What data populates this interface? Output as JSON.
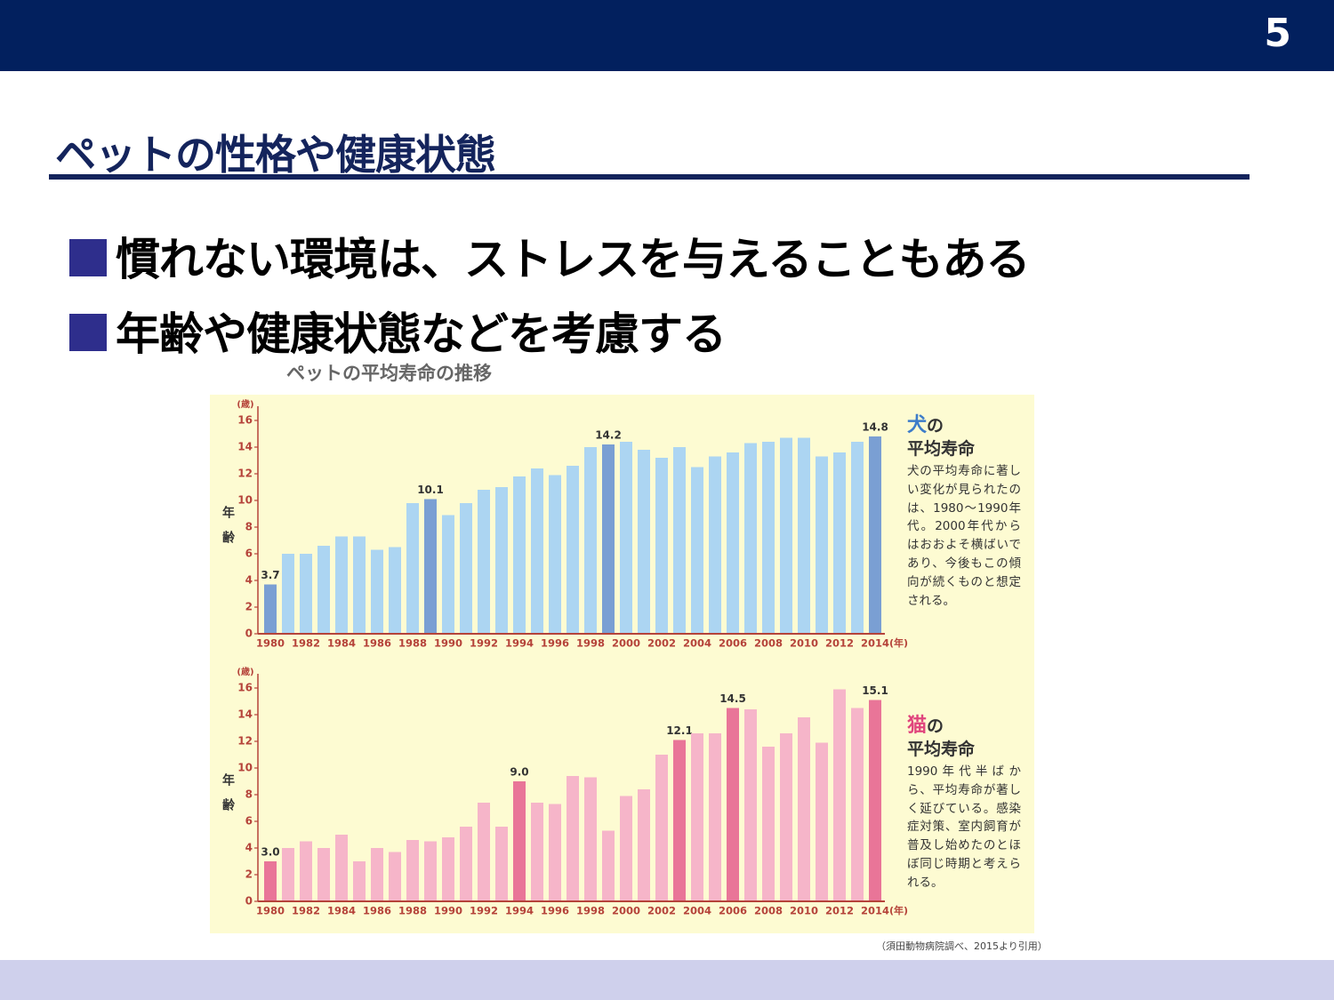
{
  "page_number": "5",
  "slide_title": "ペットの性格や健康状態",
  "bullets": [
    "慣れない環境は、ストレスを与えることもある",
    "年齢や健康状態などを考慮する"
  ],
  "figure_title": "ペットの平均寿命の推移",
  "source": "（須田動物病院調べ、2015より引用）",
  "chart_data": [
    {
      "type": "bar",
      "categories": [
        "1980",
        null,
        "1982",
        null,
        "1984",
        null,
        "1986",
        null,
        "1988",
        null,
        "1990",
        null,
        "1992",
        null,
        "1994",
        null,
        "1996",
        null,
        "1998",
        null,
        "2000",
        null,
        "2002",
        null,
        "2004",
        null,
        "2006",
        null,
        "2008",
        null,
        "2010",
        null,
        "2012",
        null,
        "2014"
      ],
      "values": [
        3.7,
        6.0,
        6.0,
        6.6,
        7.3,
        7.3,
        6.3,
        6.5,
        9.8,
        10.1,
        8.9,
        9.8,
        10.8,
        11.0,
        11.8,
        12.4,
        11.9,
        12.6,
        14.0,
        14.2,
        14.4,
        13.8,
        13.2,
        14.0,
        12.5,
        13.3,
        13.6,
        14.3,
        14.4,
        14.7,
        14.7,
        13.3,
        13.6,
        14.4,
        14.8
      ],
      "value_labels": [
        "3.7",
        null,
        null,
        null,
        null,
        null,
        null,
        null,
        null,
        "10.1",
        null,
        null,
        null,
        null,
        null,
        null,
        null,
        null,
        null,
        "14.2",
        null,
        null,
        null,
        null,
        null,
        null,
        null,
        null,
        null,
        null,
        null,
        null,
        null,
        null,
        "14.8"
      ],
      "colors": [
        "#7a9fd3",
        "#acd5f2",
        "#acd5f2",
        "#acd5f2",
        "#acd5f2",
        "#acd5f2",
        "#acd5f2",
        "#acd5f2",
        "#acd5f2",
        "#7a9fd3",
        "#acd5f2",
        "#acd5f2",
        "#acd5f2",
        "#acd5f2",
        "#acd5f2",
        "#acd5f2",
        "#acd5f2",
        "#acd5f2",
        "#acd5f2",
        "#7a9fd3",
        "#acd5f2",
        "#acd5f2",
        "#acd5f2",
        "#acd5f2",
        "#acd5f2",
        "#acd5f2",
        "#acd5f2",
        "#acd5f2",
        "#acd5f2",
        "#acd5f2",
        "#acd5f2",
        "#acd5f2",
        "#acd5f2",
        "#acd5f2",
        "#7a9fd3"
      ],
      "ylim": [
        0,
        16
      ],
      "yticks": [
        0,
        2,
        4,
        6,
        8,
        10,
        12,
        14,
        16
      ],
      "y_unit": "(歳)",
      "y_label": "年齢",
      "x_unit": "(年)",
      "side_title_mark": "犬",
      "side_title_mark_color": "#3d7cc9",
      "side_title_rest": "の",
      "side_subtitle": "平均寿命",
      "side_note": "犬の平均寿命に著しい変化が見られたのは、1980～1990年代。2000年代からはおおよそ横ばいであり、今後もこの傾向が続くものと想定される。"
    },
    {
      "type": "bar",
      "categories": [
        "1980",
        null,
        "1982",
        null,
        "1984",
        null,
        "1986",
        null,
        "1988",
        null,
        "1990",
        null,
        "1992",
        null,
        "1994",
        null,
        "1996",
        null,
        "1998",
        null,
        "2000",
        null,
        "2002",
        null,
        "2004",
        null,
        "2006",
        null,
        "2008",
        null,
        "2010",
        null,
        "2012",
        null,
        "2014"
      ],
      "values": [
        3.0,
        4.0,
        4.5,
        4.0,
        5.0,
        3.0,
        4.0,
        3.7,
        4.6,
        4.5,
        4.8,
        5.6,
        7.4,
        5.6,
        9.0,
        7.4,
        7.3,
        9.4,
        9.3,
        5.3,
        7.9,
        8.4,
        11.0,
        12.1,
        12.6,
        12.6,
        14.5,
        14.4,
        11.6,
        12.6,
        13.8,
        11.9,
        15.9,
        14.5,
        15.1
      ],
      "value_labels": [
        "3.0",
        null,
        null,
        null,
        null,
        null,
        null,
        null,
        null,
        null,
        null,
        null,
        null,
        null,
        "9.0",
        null,
        null,
        null,
        null,
        null,
        null,
        null,
        null,
        "12.1",
        null,
        null,
        "14.5",
        null,
        null,
        null,
        null,
        null,
        null,
        null,
        "15.1"
      ],
      "colors": [
        "#e97598",
        "#f6b5c9",
        "#f6b5c9",
        "#f6b5c9",
        "#f6b5c9",
        "#f6b5c9",
        "#f6b5c9",
        "#f6b5c9",
        "#f6b5c9",
        "#f6b5c9",
        "#f6b5c9",
        "#f6b5c9",
        "#f6b5c9",
        "#f6b5c9",
        "#e97598",
        "#f6b5c9",
        "#f6b5c9",
        "#f6b5c9",
        "#f6b5c9",
        "#f6b5c9",
        "#f6b5c9",
        "#f6b5c9",
        "#f6b5c9",
        "#e97598",
        "#f6b5c9",
        "#f6b5c9",
        "#e97598",
        "#f6b5c9",
        "#f6b5c9",
        "#f6b5c9",
        "#f6b5c9",
        "#f6b5c9",
        "#f6b5c9",
        "#f6b5c9",
        "#e97598"
      ],
      "ylim": [
        0,
        16
      ],
      "yticks": [
        0,
        2,
        4,
        6,
        8,
        10,
        12,
        14,
        16
      ],
      "y_unit": "(歳)",
      "y_label": "年齢",
      "x_unit": "(年)",
      "side_title_mark": "猫",
      "side_title_mark_color": "#e0457d",
      "side_title_rest": "の",
      "side_subtitle": "平均寿命",
      "side_note": "1990年代半ばから、平均寿命が著しく延びている。感染症対策、室内飼育が普及し始めたのとほぼ同じ時期と考えられる。"
    }
  ]
}
